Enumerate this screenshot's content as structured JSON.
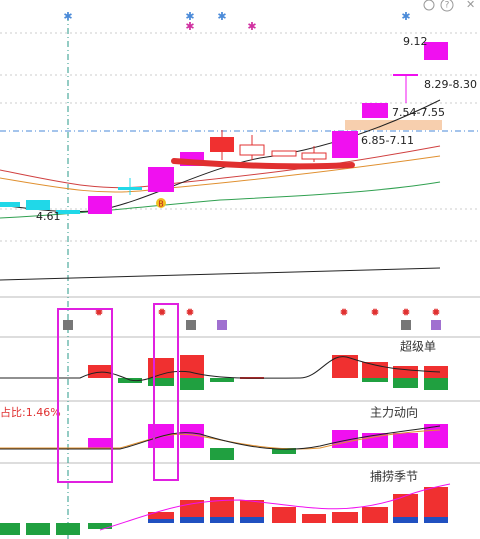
{
  "main_panel": {
    "price_labels": [
      "9.12",
      "8.29-8.30",
      "7.54-7.55",
      "6.85-7.11",
      "4.61"
    ],
    "buy_marker": "B"
  },
  "sub_panels": [
    {
      "title": "超级单"
    },
    {
      "title": "主力动向",
      "ratio_label": "占比:1.46%"
    },
    {
      "title": "捕捞季节"
    }
  ]
}
